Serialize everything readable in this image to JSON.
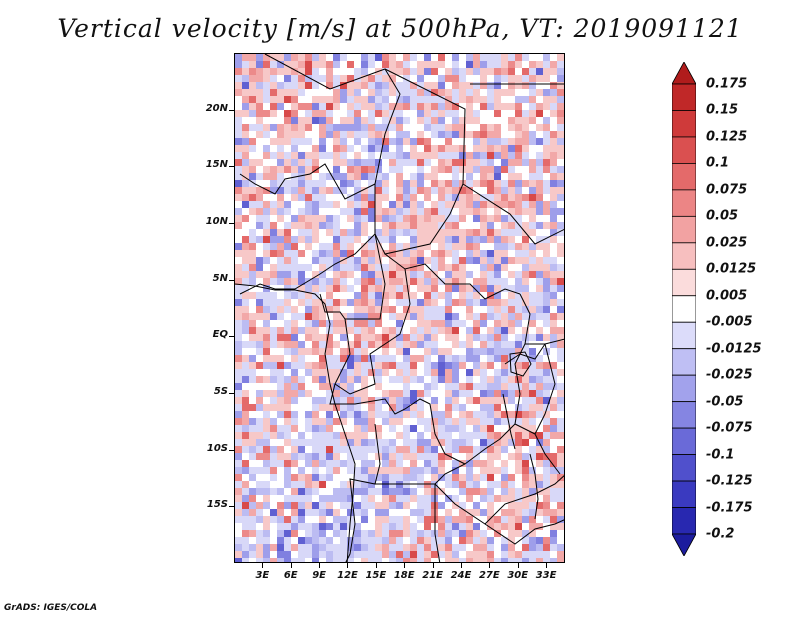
{
  "title": "Vertical velocity [m/s] at 500hPa, VT: 2019091121",
  "map": {
    "lon_range": [
      0,
      35
    ],
    "lat_range": [
      -20,
      25
    ],
    "lat_labels": [
      "20N",
      "15N",
      "10N",
      "5N",
      "EQ",
      "5S",
      "10S",
      "15S"
    ],
    "lat_values": [
      20,
      15,
      10,
      5,
      0,
      -5,
      -10,
      -15
    ],
    "lon_labels": [
      "3E",
      "6E",
      "9E",
      "12E",
      "15E",
      "18E",
      "21E",
      "24E",
      "27E",
      "30E",
      "33E"
    ],
    "lon_values": [
      3,
      6,
      9,
      12,
      15,
      18,
      21,
      24,
      27,
      30,
      33
    ]
  },
  "colorbar": {
    "labels": [
      "0.175",
      "0.15",
      "0.125",
      "0.1",
      "0.075",
      "0.05",
      "0.025",
      "0.0125",
      "0.005",
      "-0.005",
      "-0.0125",
      "-0.025",
      "-0.05",
      "-0.075",
      "-0.1",
      "-0.125",
      "-0.175",
      "-0.2"
    ],
    "colors": [
      "#b01c1c",
      "#c02828",
      "#cf3a3a",
      "#da5050",
      "#e46a6a",
      "#ec8585",
      "#f2a2a2",
      "#f7bfbf",
      "#fbdcdc",
      "#ffffff",
      "#dcdcfa",
      "#bfbff4",
      "#a2a2ec",
      "#8585e2",
      "#6a6ad8",
      "#5050cc",
      "#3a3ac0",
      "#2828b0",
      "#1c1c9e"
    ]
  },
  "credit": "GrADS: IGES/COLA"
}
